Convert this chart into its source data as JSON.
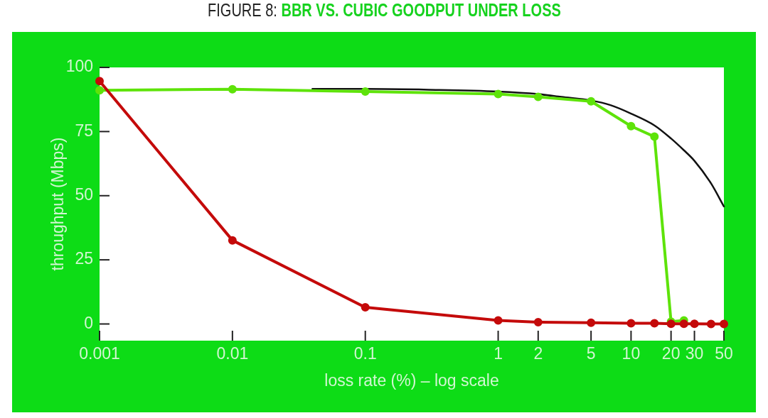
{
  "chart_data": {
    "type": "line",
    "title": "FIGURE 8: BBR VS. CUBIC GOODPUT UNDER LOSS",
    "xlabel": "loss rate (%) – log scale",
    "ylabel": "throughput (Mbps)",
    "log": "x",
    "marker": "circle",
    "line_style": "solid",
    "xlim": [
      0.001,
      50
    ],
    "xticks": [
      0.001,
      0.01,
      0.1,
      1,
      2,
      5,
      10,
      20,
      30,
      50
    ],
    "ylim": [
      -6.5,
      100
    ],
    "yticks": [
      0,
      25,
      50,
      75,
      100
    ],
    "series": [
      {
        "color": "#111111",
        "marker": "none",
        "x": [
          0.04,
          0.1,
          0.3,
          1,
          2,
          3,
          5,
          7,
          10,
          15,
          20,
          25,
          30,
          40,
          50
        ],
        "values": [
          91.6,
          91.6,
          91.3,
          90.6,
          89.6,
          88.5,
          87.1,
          85.3,
          82.0,
          77.4,
          72.3,
          67.7,
          63.6,
          54.8,
          45.8
        ]
      },
      {
        "color": "#5ee30a",
        "x": [
          0.001,
          0.01,
          0.1,
          1,
          2,
          5,
          10,
          15,
          20,
          25
        ],
        "values": [
          91.1,
          91.5,
          90.6,
          89.6,
          88.5,
          86.8,
          77.1,
          73.0,
          0.9,
          1.4
        ]
      },
      {
        "color": "#c40a0a",
        "x": [
          0.001,
          0.01,
          0.1,
          1,
          2,
          5,
          10,
          15,
          20,
          25,
          30,
          40,
          50
        ],
        "values": [
          94.7,
          32.6,
          6.5,
          1.4,
          0.7,
          0.5,
          0.3,
          0.3,
          0.1,
          0.1,
          0.1,
          0,
          0
        ]
      }
    ]
  }
}
